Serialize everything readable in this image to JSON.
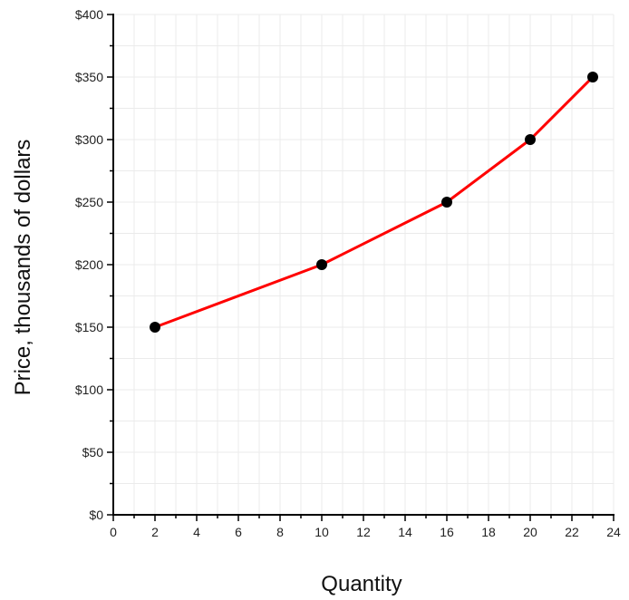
{
  "chart_data": {
    "type": "line",
    "title": "",
    "xlabel": "Quantity",
    "ylabel": "Price, thousands of dollars",
    "xlim": [
      0,
      24
    ],
    "ylim": [
      0,
      400
    ],
    "x_ticks": [
      "0",
      "2",
      "4",
      "6",
      "8",
      "10",
      "12",
      "14",
      "16",
      "18",
      "20",
      "22",
      "24"
    ],
    "y_ticks": [
      "$0",
      "$50",
      "$100",
      "$150",
      "$200",
      "$250",
      "$300",
      "$350",
      "$400"
    ],
    "grid": true,
    "legend": "none",
    "series": [
      {
        "x": [
          2,
          10,
          16,
          20,
          23
        ],
        "y": [
          150,
          200,
          250,
          300,
          350
        ],
        "line_color": "#ff0000",
        "marker_color": "#000000"
      }
    ]
  }
}
